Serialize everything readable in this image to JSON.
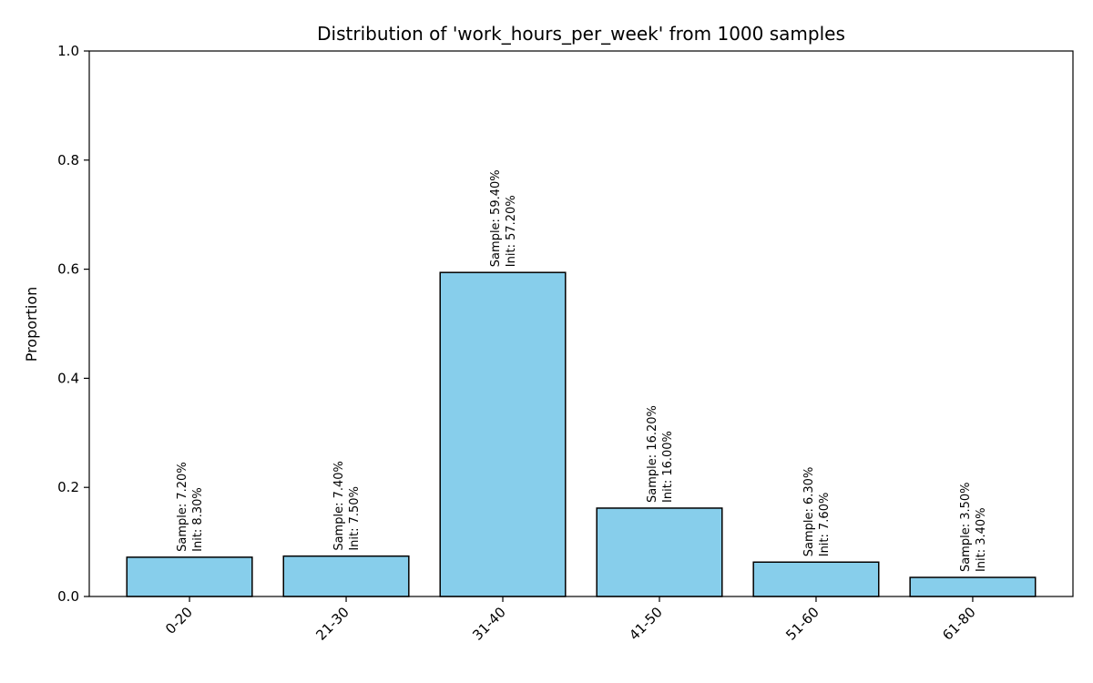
{
  "chart_data": {
    "type": "bar",
    "title": "Distribution of 'work_hours_per_week' from 1000 samples",
    "xlabel": "",
    "ylabel": "Proportion",
    "ylim": [
      0,
      1.0
    ],
    "yticks": [
      0.0,
      0.2,
      0.4,
      0.6,
      0.8,
      1.0
    ],
    "ytick_labels": [
      "0.0",
      "0.2",
      "0.4",
      "0.6",
      "0.8",
      "1.0"
    ],
    "categories": [
      "0-20",
      "21-30",
      "31-40",
      "41-50",
      "51-60",
      "61-80"
    ],
    "values": [
      0.072,
      0.074,
      0.594,
      0.162,
      0.063,
      0.035
    ],
    "bar_labels": [
      [
        "Sample: 7.20%",
        "Init: 8.30%"
      ],
      [
        "Sample: 7.40%",
        "Init: 7.50%"
      ],
      [
        "Sample: 59.40%",
        "Init: 57.20%"
      ],
      [
        "Sample: 16.20%",
        "Init: 16.00%"
      ],
      [
        "Sample: 6.30%",
        "Init: 7.60%"
      ],
      [
        "Sample: 3.50%",
        "Init: 3.40%"
      ]
    ],
    "bar_color": "#87ceeb",
    "edge_color": "#000000",
    "grid": false,
    "legend": "none"
  }
}
